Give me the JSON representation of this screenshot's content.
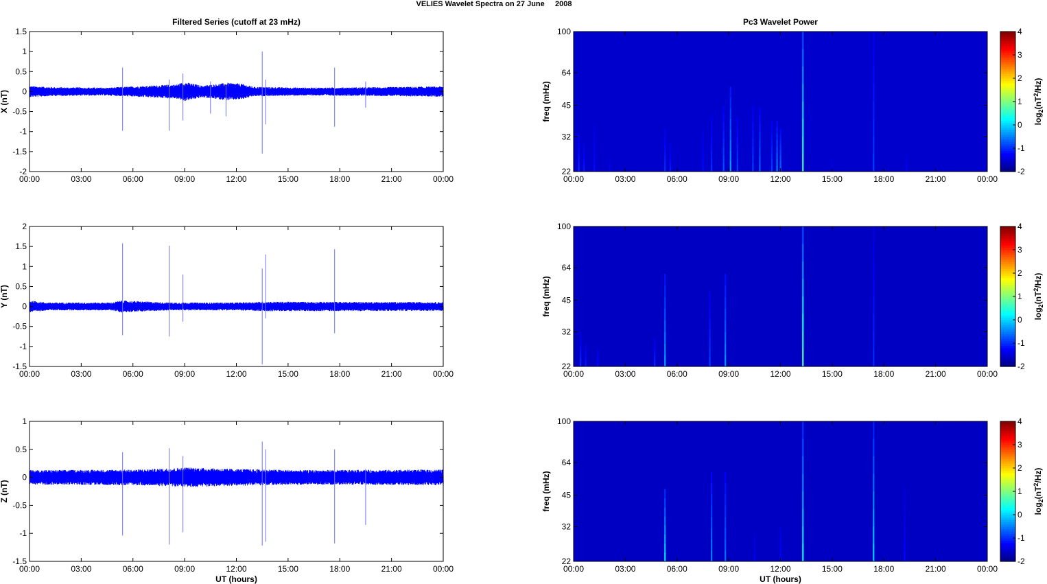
{
  "figure": {
    "title": "VELIES Wavelet Spectra on 27 June     2008"
  },
  "chart_data": [
    {
      "type": "line",
      "title": "Filtered Series (cutoff at 23 mHz)",
      "xlabel": "",
      "ylabel": "X (nT)",
      "x_ticks": [
        "00:00",
        "03:00",
        "06:00",
        "09:00",
        "12:00",
        "15:00",
        "18:00",
        "21:00",
        "00:00"
      ],
      "x_range_hours": [
        0,
        24
      ],
      "ylim": [
        -2,
        1.5
      ],
      "y_ticks": [
        -2,
        -1.5,
        -1,
        -0.5,
        0,
        0.5,
        1,
        1.5
      ],
      "y_tick_labels": [
        "-2",
        "-1.5",
        "-1",
        "-0.5",
        "0",
        "0.5",
        "1",
        "1.5"
      ],
      "noise_band": [
        {
          "t": 0,
          "amp": 0.14
        },
        {
          "t": 1.5,
          "amp": 0.11
        },
        {
          "t": 4.5,
          "amp": 0.1
        },
        {
          "t": 6,
          "amp": 0.13
        },
        {
          "t": 8.5,
          "amp": 0.18
        },
        {
          "t": 9,
          "amp": 0.24
        },
        {
          "t": 10,
          "amp": 0.15
        },
        {
          "t": 11.5,
          "amp": 0.22
        },
        {
          "t": 12.3,
          "amp": 0.2
        },
        {
          "t": 13,
          "amp": 0.12
        },
        {
          "t": 16,
          "amp": 0.1
        },
        {
          "t": 20,
          "amp": 0.11
        },
        {
          "t": 24,
          "amp": 0.13
        }
      ],
      "spikes": [
        {
          "t": 5.4,
          "max": 0.6,
          "min": -0.98
        },
        {
          "t": 8.1,
          "max": 0.3,
          "min": -0.98
        },
        {
          "t": 8.9,
          "max": 0.45,
          "min": -0.72
        },
        {
          "t": 10.5,
          "max": 0.25,
          "min": -0.55
        },
        {
          "t": 11.4,
          "max": 0.15,
          "min": -0.62
        },
        {
          "t": 13.5,
          "max": 1.0,
          "min": -1.55
        },
        {
          "t": 13.7,
          "max": 0.3,
          "min": -0.82
        },
        {
          "t": 17.7,
          "max": 0.6,
          "min": -0.88
        },
        {
          "t": 19.5,
          "max": 0.25,
          "min": -0.4
        }
      ],
      "series": [
        {
          "color": "#0000ff"
        }
      ]
    },
    {
      "type": "line",
      "title": "",
      "xlabel": "",
      "ylabel": "Y (nT)",
      "x_ticks": [
        "00:00",
        "03:00",
        "06:00",
        "09:00",
        "12:00",
        "15:00",
        "18:00",
        "21:00",
        "00:00"
      ],
      "x_range_hours": [
        0,
        24
      ],
      "ylim": [
        -1.5,
        2
      ],
      "y_ticks": [
        -1.5,
        -1,
        -0.5,
        0,
        0.5,
        1,
        1.5,
        2
      ],
      "y_tick_labels": [
        "-1.5",
        "-1",
        "-0.5",
        "0",
        "0.5",
        "1",
        "1.5",
        "2"
      ],
      "noise_band": [
        {
          "t": 0,
          "amp": 0.15
        },
        {
          "t": 1,
          "amp": 0.1
        },
        {
          "t": 4.8,
          "amp": 0.1
        },
        {
          "t": 5.3,
          "amp": 0.15
        },
        {
          "t": 8,
          "amp": 0.1
        },
        {
          "t": 12,
          "amp": 0.1
        },
        {
          "t": 13.5,
          "amp": 0.12
        },
        {
          "t": 24,
          "amp": 0.11
        }
      ],
      "spikes": [
        {
          "t": 5.4,
          "max": 1.58,
          "min": -0.72
        },
        {
          "t": 8.1,
          "max": 1.52,
          "min": -0.75
        },
        {
          "t": 8.9,
          "max": 0.8,
          "min": -0.38
        },
        {
          "t": 13.5,
          "max": 0.95,
          "min": -1.45
        },
        {
          "t": 13.7,
          "max": 1.3,
          "min": -0.3
        },
        {
          "t": 17.7,
          "max": 1.43,
          "min": -0.67
        }
      ],
      "series": [
        {
          "color": "#0000ff"
        }
      ]
    },
    {
      "type": "line",
      "title": "",
      "xlabel": "UT (hours)",
      "ylabel": "Z (nT)",
      "x_ticks": [
        "00:00",
        "03:00",
        "06:00",
        "09:00",
        "12:00",
        "15:00",
        "18:00",
        "21:00",
        "00:00"
      ],
      "x_range_hours": [
        0,
        24
      ],
      "ylim": [
        -1.5,
        1
      ],
      "y_ticks": [
        -1.5,
        -1,
        -0.5,
        0,
        0.5,
        1
      ],
      "y_tick_labels": [
        "-1.5",
        "-1",
        "-0.5",
        "0",
        "0.5",
        "1"
      ],
      "noise_band": [
        {
          "t": 0,
          "amp": 0.13
        },
        {
          "t": 6,
          "amp": 0.14
        },
        {
          "t": 8,
          "amp": 0.16
        },
        {
          "t": 9,
          "amp": 0.18
        },
        {
          "t": 12,
          "amp": 0.15
        },
        {
          "t": 16,
          "amp": 0.13
        },
        {
          "t": 24,
          "amp": 0.14
        }
      ],
      "spikes": [
        {
          "t": 5.4,
          "max": 0.45,
          "min": -1.04
        },
        {
          "t": 8.1,
          "max": 0.52,
          "min": -1.2
        },
        {
          "t": 8.9,
          "max": 0.38,
          "min": -0.98
        },
        {
          "t": 13.5,
          "max": 0.64,
          "min": -1.22
        },
        {
          "t": 13.7,
          "max": 0.5,
          "min": -1.15
        },
        {
          "t": 17.7,
          "max": 0.5,
          "min": -1.18
        },
        {
          "t": 19.5,
          "max": 0.15,
          "min": -0.85
        }
      ],
      "series": [
        {
          "color": "#0000ff"
        }
      ]
    },
    {
      "type": "heatmap",
      "title": "Pc3 Wavelet Power",
      "xlabel": "",
      "ylabel": "freq (mHz)",
      "x_ticks": [
        "00:00",
        "03:00",
        "06:00",
        "09:00",
        "12:00",
        "15:00",
        "18:00",
        "21:00",
        "00:00"
      ],
      "x_range_hours": [
        0,
        24
      ],
      "y_scale": "log",
      "ylim": [
        22,
        100
      ],
      "y_ticks": [
        22,
        32,
        45,
        64,
        100
      ],
      "colorbar": {
        "label": "log2(nT^2/Hz)",
        "range": [
          -2,
          4
        ],
        "ticks": [
          -2,
          -1,
          0,
          1,
          2,
          3,
          4
        ],
        "colormap": "jet"
      },
      "background_level": -1.55,
      "streaks": [
        {
          "t": 0.3,
          "top": 33,
          "level": -1.0
        },
        {
          "t": 0.6,
          "top": 30,
          "level": -1.1
        },
        {
          "t": 1.2,
          "top": 37,
          "level": -1.2
        },
        {
          "t": 2.1,
          "top": 25,
          "level": -1.3
        },
        {
          "t": 5.3,
          "top": 35,
          "level": -1.0
        },
        {
          "t": 5.6,
          "top": 30,
          "level": -1.1
        },
        {
          "t": 7.5,
          "top": 35,
          "level": -1.2
        },
        {
          "t": 8.0,
          "top": 40,
          "level": -1.0
        },
        {
          "t": 8.7,
          "top": 45,
          "level": -0.8
        },
        {
          "t": 9.1,
          "top": 55,
          "level": -0.3
        },
        {
          "t": 9.5,
          "top": 40,
          "level": -0.9
        },
        {
          "t": 10.4,
          "top": 45,
          "level": -0.9
        },
        {
          "t": 10.8,
          "top": 44,
          "level": -0.7
        },
        {
          "t": 11.5,
          "top": 38,
          "level": -0.9
        },
        {
          "t": 11.8,
          "top": 38,
          "level": -0.5
        },
        {
          "t": 12.0,
          "top": 35,
          "level": -0.6
        },
        {
          "t": 13.3,
          "top": 100,
          "level": 0.6
        },
        {
          "t": 15.0,
          "top": 25,
          "level": -1.3
        },
        {
          "t": 17.4,
          "top": 100,
          "level": -0.9
        },
        {
          "t": 19.3,
          "top": 27,
          "level": -1.3
        }
      ]
    },
    {
      "type": "heatmap",
      "title": "",
      "xlabel": "",
      "ylabel": "freq (mHz)",
      "x_ticks": [
        "00:00",
        "03:00",
        "06:00",
        "09:00",
        "12:00",
        "15:00",
        "18:00",
        "21:00",
        "00:00"
      ],
      "x_range_hours": [
        0,
        24
      ],
      "y_scale": "log",
      "ylim": [
        22,
        100
      ],
      "y_ticks": [
        22,
        32,
        45,
        64,
        100
      ],
      "colorbar": {
        "label": "log2(nT^2/Hz)",
        "range": [
          -2,
          4
        ],
        "ticks": [
          -2,
          -1,
          0,
          1,
          2,
          3,
          4
        ],
        "colormap": "jet"
      },
      "background_level": -1.6,
      "streaks": [
        {
          "t": 0.4,
          "top": 32,
          "level": -1.0
        },
        {
          "t": 0.7,
          "top": 28,
          "level": -1.1
        },
        {
          "t": 1.4,
          "top": 27,
          "level": -1.2
        },
        {
          "t": 4.7,
          "top": 30,
          "level": -1.0
        },
        {
          "t": 5.3,
          "top": 60,
          "level": -0.3
        },
        {
          "t": 7.9,
          "top": 50,
          "level": -0.9
        },
        {
          "t": 8.8,
          "top": 60,
          "level": -0.4
        },
        {
          "t": 13.3,
          "top": 100,
          "level": 0.7
        },
        {
          "t": 17.4,
          "top": 100,
          "level": -1.0
        }
      ]
    },
    {
      "type": "heatmap",
      "title": "",
      "xlabel": "UT (hours)",
      "ylabel": "freq (mHz)",
      "x_ticks": [
        "00:00",
        "03:00",
        "06:00",
        "09:00",
        "12:00",
        "15:00",
        "18:00",
        "21:00",
        "00:00"
      ],
      "x_range_hours": [
        0,
        24
      ],
      "y_scale": "log",
      "ylim": [
        22,
        100
      ],
      "y_ticks": [
        22,
        32,
        45,
        64,
        100
      ],
      "colorbar": {
        "label": "log2(nT^2/Hz)",
        "range": [
          -2,
          4
        ],
        "ticks": [
          -2,
          -1,
          0,
          1,
          2,
          3,
          4
        ],
        "colormap": "jet"
      },
      "background_level": -1.6,
      "streaks": [
        {
          "t": 5.3,
          "top": 48,
          "level": 0.1
        },
        {
          "t": 8.0,
          "top": 58,
          "level": -0.5
        },
        {
          "t": 8.8,
          "top": 58,
          "level": -0.6
        },
        {
          "t": 10.5,
          "top": 30,
          "level": -1.3
        },
        {
          "t": 12.0,
          "top": 32,
          "level": -1.2
        },
        {
          "t": 13.3,
          "top": 100,
          "level": 0.2
        },
        {
          "t": 17.4,
          "top": 100,
          "level": 0.0
        },
        {
          "t": 19.2,
          "top": 48,
          "level": -1.2
        }
      ]
    }
  ]
}
